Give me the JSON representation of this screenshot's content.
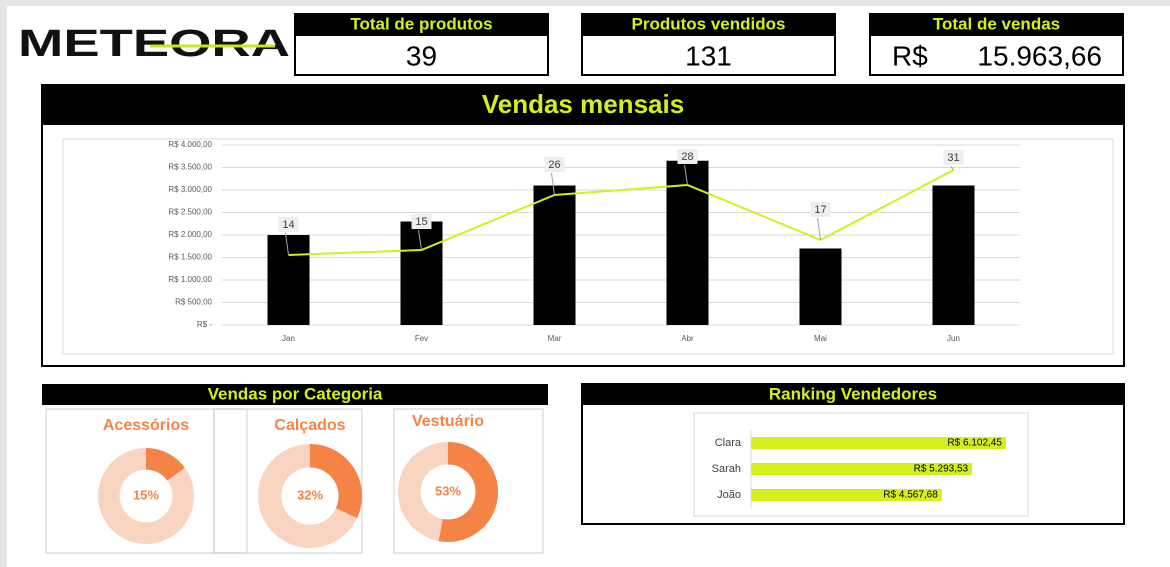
{
  "logo": "METEORA",
  "kpis": [
    {
      "label": "Total de produtos",
      "value": "39"
    },
    {
      "label": "Produtos vendidos",
      "value": "131"
    },
    {
      "label": "Total de vendas",
      "currency": "R$",
      "value": "15.963,66"
    }
  ],
  "category_header": "Vendas por Categoria",
  "chart_data": [
    {
      "type": "bar-line",
      "title": "Vendas mensais",
      "categories": [
        "Jan",
        "Fev",
        "Mar",
        "Abr",
        "Mai",
        "Jun"
      ],
      "series": [
        {
          "type": "bar",
          "color": "#000000",
          "values": [
            2000,
            2300,
            3100,
            3650,
            1700,
            3100
          ]
        },
        {
          "type": "line",
          "axis": "y2",
          "color": "#d4ef1a",
          "values": [
            14,
            15,
            26,
            28,
            17,
            31
          ]
        }
      ],
      "ylim": [
        0,
        4000
      ],
      "yticks": [
        {
          "value": 0,
          "label": "R$ -"
        },
        {
          "value": 500,
          "label": "R$ 500,00"
        },
        {
          "value": 1000,
          "label": "R$ 1.000,00"
        },
        {
          "value": 1500,
          "label": "R$ 1.500,00"
        },
        {
          "value": 2000,
          "label": "R$ 2.000,00"
        },
        {
          "value": 2500,
          "label": "R$ 2.500,00"
        },
        {
          "value": 3000,
          "label": "R$ 3.000,00"
        },
        {
          "value": 3500,
          "label": "R$ 3.500,00"
        },
        {
          "value": 4000,
          "label": "R$ 4.000,00"
        }
      ],
      "y2lim": [
        0,
        36
      ],
      "grid": true
    },
    {
      "type": "donut",
      "title": "Acessórios",
      "values": [
        15
      ],
      "value_labels": [
        "15%"
      ],
      "color": "#f58346"
    },
    {
      "type": "donut",
      "title": "Calçados",
      "values": [
        32
      ],
      "value_labels": [
        "32%"
      ],
      "color": "#f58346"
    },
    {
      "type": "donut",
      "title": "Vestuário",
      "values": [
        53
      ],
      "value_labels": [
        "53%"
      ],
      "color": "#f58346"
    },
    {
      "type": "hbar",
      "title": "Ranking Vendedores",
      "categories": [
        "Clara",
        "Sarah",
        "João"
      ],
      "values": [
        6102.45,
        5293.53,
        4567.68
      ],
      "value_labels": [
        "R$ 6.102,45",
        "R$ 5.293,53",
        "R$ 4.567,68"
      ],
      "color": "#d4ef1a",
      "xlim": [
        0,
        6200
      ]
    }
  ]
}
